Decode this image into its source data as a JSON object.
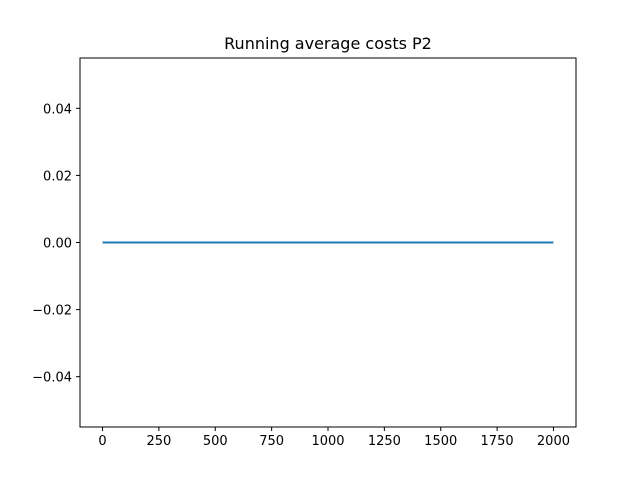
{
  "chart_data": {
    "type": "line",
    "title": "Running average costs P2",
    "xlabel": "",
    "ylabel": "",
    "xlim": [
      -100,
      2100
    ],
    "ylim": [
      -0.055,
      0.055
    ],
    "x_ticks": [
      0,
      250,
      500,
      750,
      1000,
      1250,
      1500,
      1750,
      2000
    ],
    "x_tick_labels": [
      "0",
      "250",
      "500",
      "750",
      "1000",
      "1250",
      "1500",
      "1750",
      "2000"
    ],
    "y_ticks": [
      0.04,
      0.02,
      0.0,
      -0.02,
      -0.04
    ],
    "y_tick_labels": [
      "0.04",
      "0.02",
      "0.00",
      "−0.02",
      "−0.04"
    ],
    "grid": false,
    "legend": "none",
    "series": [
      {
        "name": "P2",
        "color": "#1f77b4",
        "x": [
          0,
          2000
        ],
        "y": [
          0.0,
          0.0
        ]
      }
    ]
  }
}
